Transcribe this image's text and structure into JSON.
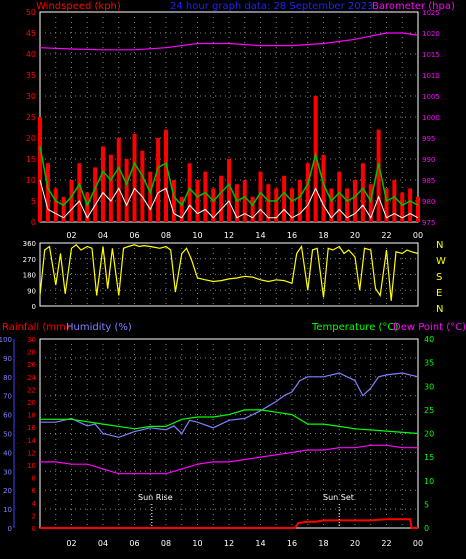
{
  "header": {
    "left": "Windspeed (kph)",
    "center": "24 hour graph data: 28 September 2023",
    "right": "Barometer (hpa)"
  },
  "bottom_header": {
    "rainfall": "Rainfall (mm)",
    "humidity": "Humidity (%)",
    "temperature": "Temperature (°C)",
    "dewpoint": "Dew Point (°C)"
  },
  "compass": [
    "N",
    "W",
    "S",
    "E",
    "N"
  ],
  "annotations": {
    "sunrise": "Sun Rise",
    "sunset": "Sun Set"
  },
  "x_ticks": [
    "02",
    "04",
    "06",
    "08",
    "10",
    "12",
    "14",
    "16",
    "18",
    "20",
    "22",
    "00"
  ],
  "colors": {
    "wind_gust": "#ff0000",
    "wind_avg": "#00c000",
    "wind_low": "#ffffff",
    "barometer": "#ff00ff",
    "direction": "#ffff00",
    "rain": "#ff0000",
    "humidity": "#8080ff",
    "temperature": "#00ff00",
    "dewpoint": "#ff00ff",
    "grid": "#808080",
    "axis": "#ffffff"
  },
  "chart_data": [
    {
      "type": "line",
      "panel": "wind-barometer",
      "x_range": [
        0,
        24
      ],
      "y_left": {
        "label": "Windspeed (kph)",
        "ticks": [
          0,
          5,
          10,
          15,
          20,
          25,
          30,
          35,
          40,
          45,
          50
        ],
        "range": [
          0,
          50
        ]
      },
      "y_right": {
        "label": "Barometer (hpa)",
        "ticks": [
          975,
          980,
          985,
          990,
          995,
          1000,
          1005,
          1010,
          1015,
          1020,
          1025
        ],
        "range": [
          975,
          1025
        ]
      },
      "series": [
        {
          "name": "Windspeed (kph)",
          "key": "gust",
          "x": [
            0,
            0.5,
            1,
            1.5,
            2,
            2.5,
            3,
            3.5,
            4,
            4.5,
            5,
            5.5,
            6,
            6.5,
            7,
            7.5,
            8,
            8.5,
            9,
            9.5,
            10,
            10.5,
            11,
            11.5,
            12,
            12.5,
            13,
            13.5,
            14,
            14.5,
            15,
            15.5,
            16,
            16.5,
            17,
            17.5,
            18,
            18.5,
            19,
            19.5,
            20,
            20.5,
            21,
            21.5,
            22,
            22.5,
            23,
            23.5,
            24
          ],
          "values": [
            25,
            14,
            8,
            6,
            10,
            14,
            7,
            13,
            18,
            16,
            20,
            15,
            21,
            17,
            12,
            20,
            22,
            10,
            6,
            14,
            10,
            12,
            8,
            11,
            15,
            9,
            10,
            6,
            12,
            9,
            8,
            11,
            8,
            10,
            14,
            30,
            16,
            8,
            12,
            8,
            10,
            14,
            9,
            22,
            8,
            10,
            7,
            8,
            6
          ]
        },
        {
          "name": "",
          "key": "avg",
          "x": [
            0,
            0.5,
            1,
            1.5,
            2,
            2.5,
            3,
            3.5,
            4,
            4.5,
            5,
            5.5,
            6,
            6.5,
            7,
            7.5,
            8,
            8.5,
            9,
            9.5,
            10,
            10.5,
            11,
            11.5,
            12,
            12.5,
            13,
            13.5,
            14,
            14.5,
            15,
            15.5,
            16,
            16.5,
            17,
            17.5,
            18,
            18.5,
            19,
            19.5,
            20,
            20.5,
            21,
            21.5,
            22,
            22.5,
            23,
            23.5,
            24
          ],
          "values": [
            18,
            8,
            5,
            4,
            6,
            9,
            4,
            8,
            12,
            10,
            13,
            9,
            14,
            11,
            7,
            13,
            14,
            6,
            4,
            8,
            6,
            7,
            5,
            7,
            9,
            5,
            6,
            4,
            7,
            5,
            5,
            7,
            5,
            6,
            9,
            16,
            9,
            5,
            7,
            5,
            6,
            8,
            5,
            14,
            5,
            6,
            4,
            5,
            4
          ]
        },
        {
          "name": "",
          "key": "low",
          "x": [
            0,
            0.5,
            1,
            1.5,
            2,
            2.5,
            3,
            3.5,
            4,
            4.5,
            5,
            5.5,
            6,
            6.5,
            7,
            7.5,
            8,
            8.5,
            9,
            9.5,
            10,
            10.5,
            11,
            11.5,
            12,
            12.5,
            13,
            13.5,
            14,
            14.5,
            15,
            15.5,
            16,
            16.5,
            17,
            17.5,
            18,
            18.5,
            19,
            19.5,
            20,
            20.5,
            21,
            21.5,
            22,
            22.5,
            23,
            23.5,
            24
          ],
          "values": [
            10,
            3,
            2,
            1,
            3,
            5,
            1,
            4,
            7,
            5,
            8,
            4,
            8,
            6,
            3,
            7,
            8,
            2,
            1,
            4,
            2,
            3,
            1,
            3,
            5,
            1,
            2,
            1,
            3,
            1,
            1,
            3,
            1,
            2,
            4,
            8,
            4,
            1,
            3,
            1,
            2,
            4,
            1,
            6,
            1,
            2,
            1,
            2,
            1
          ]
        },
        {
          "name": "Barometer (hpa)",
          "key": "baro",
          "axis": "right",
          "x": [
            0,
            2,
            4,
            6,
            8,
            10,
            12,
            14,
            16,
            18,
            20,
            22,
            23,
            24
          ],
          "values": [
            1016.5,
            1016.2,
            1016,
            1016,
            1016.5,
            1017.5,
            1017.5,
            1017,
            1017,
            1017.5,
            1018.5,
            1020,
            1020,
            1019.5
          ]
        }
      ]
    },
    {
      "type": "scatter",
      "panel": "wind-direction",
      "x_range": [
        0,
        24
      ],
      "y_left": {
        "ticks": [
          0,
          90,
          180,
          270,
          360
        ],
        "range": [
          0,
          360
        ]
      },
      "y_right": {
        "ticks": [
          "N",
          "W",
          "S",
          "E",
          "N"
        ]
      },
      "series": [
        {
          "name": "",
          "key": "dir",
          "x": [
            0,
            0.3,
            0.6,
            1,
            1.3,
            1.6,
            2,
            2.3,
            2.6,
            3,
            3.3,
            3.6,
            4,
            4.3,
            4.6,
            5,
            5.3,
            5.6,
            6,
            6.3,
            6.6,
            7,
            7.3,
            7.6,
            8,
            8.3,
            8.6,
            9,
            9.3,
            9.6,
            10,
            10.5,
            11,
            11.5,
            12,
            12.5,
            13,
            13.5,
            14,
            14.5,
            15,
            15.5,
            16,
            16.3,
            16.6,
            17,
            17.3,
            17.6,
            18,
            18.3,
            18.6,
            19,
            19.3,
            19.6,
            20,
            20.3,
            20.6,
            21,
            21.3,
            21.6,
            22,
            22.3,
            22.6,
            23,
            23.3,
            23.6,
            24
          ],
          "values": [
            60,
            320,
            340,
            120,
            300,
            70,
            330,
            350,
            320,
            340,
            330,
            60,
            340,
            100,
            330,
            60,
            330,
            340,
            350,
            340,
            345,
            340,
            335,
            330,
            340,
            320,
            80,
            300,
            330,
            270,
            160,
            150,
            140,
            145,
            155,
            160,
            170,
            165,
            150,
            140,
            150,
            145,
            130,
            300,
            340,
            90,
            320,
            330,
            50,
            330,
            320,
            340,
            300,
            320,
            280,
            90,
            330,
            320,
            100,
            60,
            320,
            30,
            310,
            300,
            320,
            310,
            300
          ]
        }
      ]
    },
    {
      "type": "line",
      "panel": "temperature-humidity-rain",
      "x_range": [
        0,
        24
      ],
      "y_humidity": {
        "label": "Humidity (%)",
        "ticks": [
          0,
          10,
          20,
          30,
          40,
          50,
          60,
          70,
          80,
          90,
          100
        ],
        "range": [
          0,
          100
        ]
      },
      "y_rain": {
        "label": "Rainfall (mm)",
        "ticks": [
          0,
          2,
          4,
          6,
          8,
          10,
          12,
          14,
          16,
          18,
          20,
          22,
          24,
          26,
          28,
          30
        ],
        "range": [
          0,
          30
        ]
      },
      "y_temp": {
        "label": "Temperature (°C)",
        "ticks": [
          0,
          5,
          10,
          15,
          20,
          25,
          30,
          35,
          40
        ],
        "range": [
          0,
          40
        ]
      },
      "series": [
        {
          "name": "Humidity (%)",
          "key": "hum",
          "x": [
            0,
            1,
            2,
            2.5,
            3,
            3.5,
            4,
            5,
            6,
            7,
            8,
            8.5,
            9,
            9.5,
            10,
            11,
            12,
            13,
            14,
            15,
            15.5,
            16,
            16.5,
            17,
            18,
            19,
            20,
            20.5,
            21,
            21.5,
            22,
            23,
            24
          ],
          "values": [
            56,
            56,
            58,
            56,
            54,
            55,
            50,
            48,
            51,
            53,
            52,
            54,
            50,
            57,
            56,
            53,
            57,
            58,
            62,
            67,
            70,
            72,
            78,
            80,
            80,
            82,
            78,
            70,
            74,
            80,
            81,
            82,
            80
          ]
        },
        {
          "name": "Temperature (°C)",
          "key": "temp",
          "x": [
            0,
            2,
            4,
            6,
            7,
            8,
            9,
            10,
            11,
            12,
            13,
            14,
            15,
            16,
            17,
            18,
            19,
            20,
            22,
            24
          ],
          "values": [
            23,
            23,
            22,
            21,
            21.5,
            21.5,
            23,
            23.5,
            23.5,
            24,
            25,
            25,
            24.5,
            24,
            22,
            22,
            21.5,
            21,
            20.5,
            20
          ]
        },
        {
          "name": "Dew Point (°C)",
          "key": "dew",
          "x": [
            0,
            1,
            2,
            3,
            4,
            5,
            6,
            7,
            8,
            9,
            10,
            11,
            12,
            13,
            14,
            15,
            16,
            17,
            18,
            19,
            20,
            21,
            22,
            23,
            24
          ],
          "values": [
            14,
            14,
            13.5,
            13.5,
            12.5,
            11.5,
            11.5,
            11.5,
            11.5,
            12.5,
            13.5,
            14,
            14,
            14.5,
            15,
            15.5,
            16,
            16.5,
            16.5,
            17,
            17,
            17.5,
            17.5,
            17,
            17
          ]
        },
        {
          "name": "Rainfall (mm)",
          "key": "rain",
          "x": [
            0,
            16.2,
            16.4,
            17,
            17.5,
            18,
            19,
            20,
            21,
            22,
            23,
            23.5,
            23.6,
            24
          ],
          "values": [
            0,
            0,
            0.8,
            1,
            1,
            1.2,
            1.2,
            1.2,
            1.2,
            1.4,
            1.4,
            1.4,
            0,
            0
          ]
        }
      ]
    }
  ]
}
